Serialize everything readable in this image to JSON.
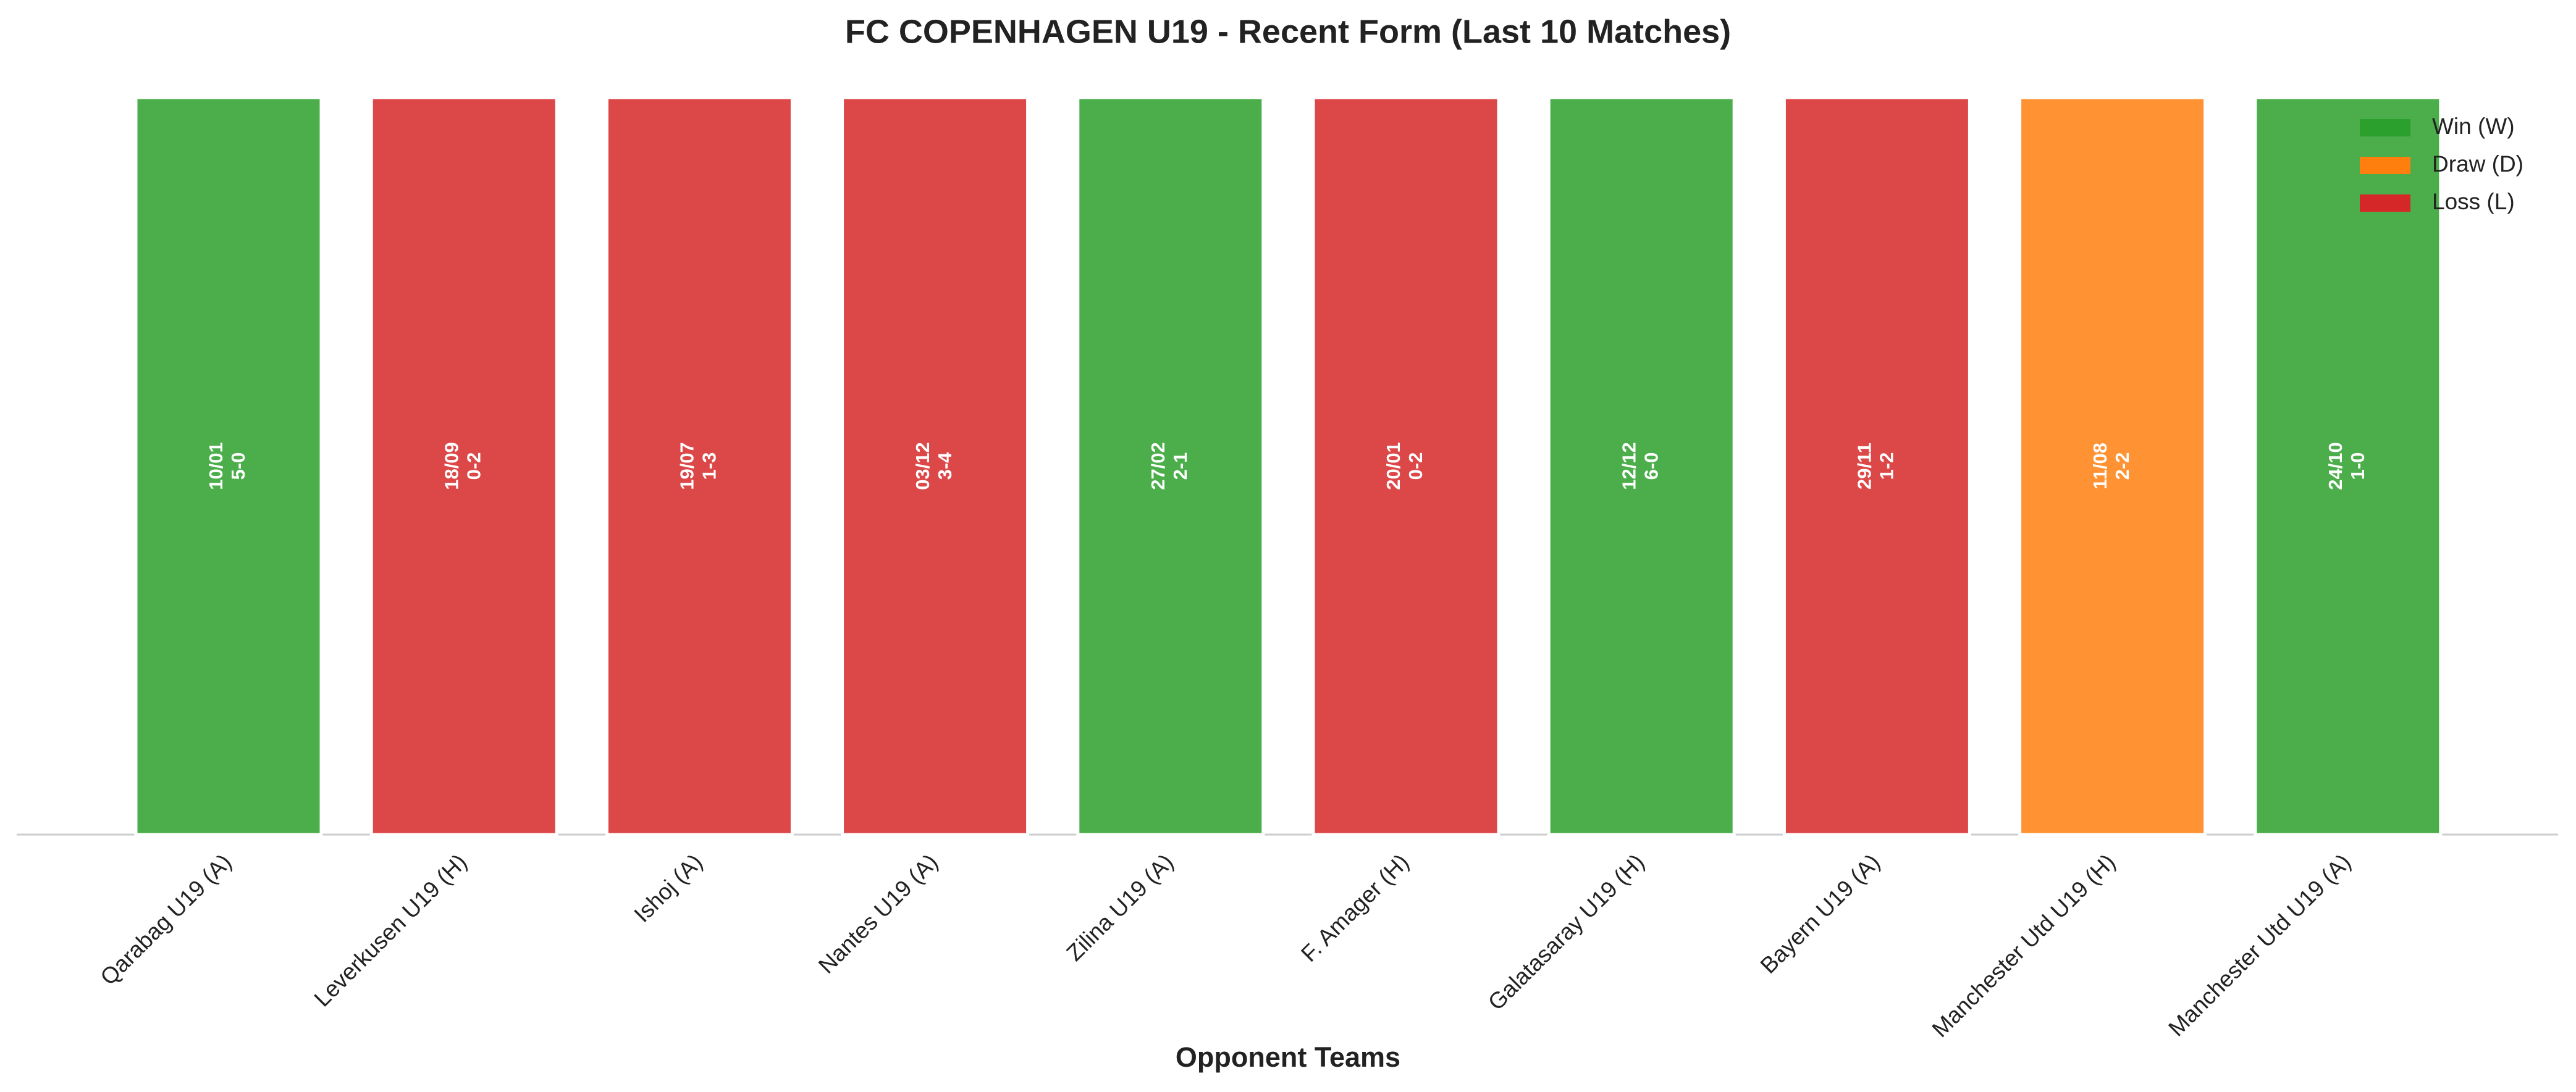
{
  "chart_data": {
    "type": "bar",
    "title": "FC COPENHAGEN U19 - Recent Form (Last 10 Matches)",
    "x_label": "Opponent Teams",
    "categories": [
      "Qarabag U19 (A)",
      "Leverkusen U19 (H)",
      "Ishoj (A)",
      "Nantes U19 (A)",
      "Zilina U19 (A)",
      "F. Amager (H)",
      "Galatasaray U19 (H)",
      "Bayern U19 (A)",
      "Manchester Utd U19 (H)",
      "Manchester Utd U19 (A)"
    ],
    "dates": [
      "10/01",
      "18/09",
      "19/07",
      "03/12",
      "27/02",
      "20/01",
      "12/12",
      "29/11",
      "11/08",
      "24/10"
    ],
    "scores": [
      "5-0",
      "0-2",
      "1-3",
      "3-4",
      "2-1",
      "0-2",
      "6-0",
      "1-2",
      "2-2",
      "1-0"
    ],
    "values": [
      1,
      1,
      1,
      1,
      1,
      1,
      1,
      1,
      1,
      1
    ],
    "colors": [
      "#2ca02c",
      "#d62728",
      "#d62728",
      "#d62728",
      "#2ca02c",
      "#d62728",
      "#2ca02c",
      "#d62728",
      "#ff7f0e",
      "#2ca02c"
    ],
    "ylim": [
      0,
      1
    ],
    "legend": [
      {
        "name": "Win (W)",
        "color": "#2ca02c"
      },
      {
        "name": "Draw (D)",
        "color": "#ff7f0e"
      },
      {
        "name": "Loss (L)",
        "color": "#d62728"
      }
    ],
    "legend_position": "upper right"
  }
}
